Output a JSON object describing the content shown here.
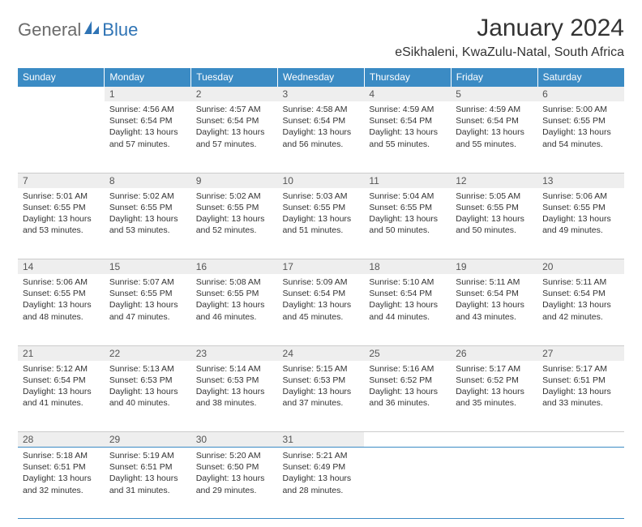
{
  "brand": {
    "word1": "General",
    "word2": "Blue"
  },
  "title": "January 2024",
  "location": "eSikhaleni, KwaZulu-Natal, South Africa",
  "colors": {
    "header_bg": "#3b8bc4",
    "header_fg": "#ffffff",
    "daynum_bg": "#eeeeee",
    "daynum_fg": "#555555",
    "rule": "#3b8bc4",
    "text": "#333333",
    "logo_gray": "#6b6b6b",
    "logo_blue": "#2f74b5"
  },
  "day_names": [
    "Sunday",
    "Monday",
    "Tuesday",
    "Wednesday",
    "Thursday",
    "Friday",
    "Saturday"
  ],
  "weeks": [
    [
      {
        "n": "",
        "sunrise": "",
        "sunset": "",
        "daylight": ""
      },
      {
        "n": "1",
        "sunrise": "4:56 AM",
        "sunset": "6:54 PM",
        "daylight": "13 hours and 57 minutes."
      },
      {
        "n": "2",
        "sunrise": "4:57 AM",
        "sunset": "6:54 PM",
        "daylight": "13 hours and 57 minutes."
      },
      {
        "n": "3",
        "sunrise": "4:58 AM",
        "sunset": "6:54 PM",
        "daylight": "13 hours and 56 minutes."
      },
      {
        "n": "4",
        "sunrise": "4:59 AM",
        "sunset": "6:54 PM",
        "daylight": "13 hours and 55 minutes."
      },
      {
        "n": "5",
        "sunrise": "4:59 AM",
        "sunset": "6:54 PM",
        "daylight": "13 hours and 55 minutes."
      },
      {
        "n": "6",
        "sunrise": "5:00 AM",
        "sunset": "6:55 PM",
        "daylight": "13 hours and 54 minutes."
      }
    ],
    [
      {
        "n": "7",
        "sunrise": "5:01 AM",
        "sunset": "6:55 PM",
        "daylight": "13 hours and 53 minutes."
      },
      {
        "n": "8",
        "sunrise": "5:02 AM",
        "sunset": "6:55 PM",
        "daylight": "13 hours and 53 minutes."
      },
      {
        "n": "9",
        "sunrise": "5:02 AM",
        "sunset": "6:55 PM",
        "daylight": "13 hours and 52 minutes."
      },
      {
        "n": "10",
        "sunrise": "5:03 AM",
        "sunset": "6:55 PM",
        "daylight": "13 hours and 51 minutes."
      },
      {
        "n": "11",
        "sunrise": "5:04 AM",
        "sunset": "6:55 PM",
        "daylight": "13 hours and 50 minutes."
      },
      {
        "n": "12",
        "sunrise": "5:05 AM",
        "sunset": "6:55 PM",
        "daylight": "13 hours and 50 minutes."
      },
      {
        "n": "13",
        "sunrise": "5:06 AM",
        "sunset": "6:55 PM",
        "daylight": "13 hours and 49 minutes."
      }
    ],
    [
      {
        "n": "14",
        "sunrise": "5:06 AM",
        "sunset": "6:55 PM",
        "daylight": "13 hours and 48 minutes."
      },
      {
        "n": "15",
        "sunrise": "5:07 AM",
        "sunset": "6:55 PM",
        "daylight": "13 hours and 47 minutes."
      },
      {
        "n": "16",
        "sunrise": "5:08 AM",
        "sunset": "6:55 PM",
        "daylight": "13 hours and 46 minutes."
      },
      {
        "n": "17",
        "sunrise": "5:09 AM",
        "sunset": "6:54 PM",
        "daylight": "13 hours and 45 minutes."
      },
      {
        "n": "18",
        "sunrise": "5:10 AM",
        "sunset": "6:54 PM",
        "daylight": "13 hours and 44 minutes."
      },
      {
        "n": "19",
        "sunrise": "5:11 AM",
        "sunset": "6:54 PM",
        "daylight": "13 hours and 43 minutes."
      },
      {
        "n": "20",
        "sunrise": "5:11 AM",
        "sunset": "6:54 PM",
        "daylight": "13 hours and 42 minutes."
      }
    ],
    [
      {
        "n": "21",
        "sunrise": "5:12 AM",
        "sunset": "6:54 PM",
        "daylight": "13 hours and 41 minutes."
      },
      {
        "n": "22",
        "sunrise": "5:13 AM",
        "sunset": "6:53 PM",
        "daylight": "13 hours and 40 minutes."
      },
      {
        "n": "23",
        "sunrise": "5:14 AM",
        "sunset": "6:53 PM",
        "daylight": "13 hours and 38 minutes."
      },
      {
        "n": "24",
        "sunrise": "5:15 AM",
        "sunset": "6:53 PM",
        "daylight": "13 hours and 37 minutes."
      },
      {
        "n": "25",
        "sunrise": "5:16 AM",
        "sunset": "6:52 PM",
        "daylight": "13 hours and 36 minutes."
      },
      {
        "n": "26",
        "sunrise": "5:17 AM",
        "sunset": "6:52 PM",
        "daylight": "13 hours and 35 minutes."
      },
      {
        "n": "27",
        "sunrise": "5:17 AM",
        "sunset": "6:51 PM",
        "daylight": "13 hours and 33 minutes."
      }
    ],
    [
      {
        "n": "28",
        "sunrise": "5:18 AM",
        "sunset": "6:51 PM",
        "daylight": "13 hours and 32 minutes."
      },
      {
        "n": "29",
        "sunrise": "5:19 AM",
        "sunset": "6:51 PM",
        "daylight": "13 hours and 31 minutes."
      },
      {
        "n": "30",
        "sunrise": "5:20 AM",
        "sunset": "6:50 PM",
        "daylight": "13 hours and 29 minutes."
      },
      {
        "n": "31",
        "sunrise": "5:21 AM",
        "sunset": "6:49 PM",
        "daylight": "13 hours and 28 minutes."
      },
      {
        "n": "",
        "sunrise": "",
        "sunset": "",
        "daylight": ""
      },
      {
        "n": "",
        "sunrise": "",
        "sunset": "",
        "daylight": ""
      },
      {
        "n": "",
        "sunrise": "",
        "sunset": "",
        "daylight": ""
      }
    ]
  ],
  "labels": {
    "sunrise_prefix": "Sunrise: ",
    "sunset_prefix": "Sunset: ",
    "daylight_prefix": "Daylight: "
  }
}
